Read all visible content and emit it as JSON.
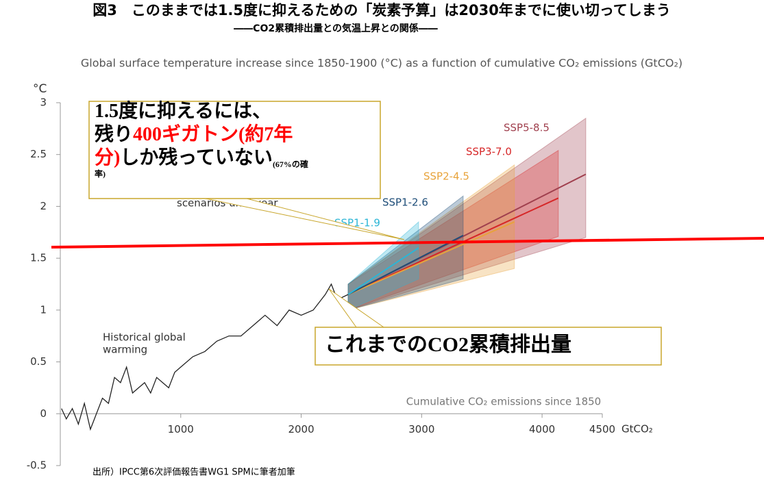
{
  "header": {
    "title": "図3　このままでは1.5度に抑えるための「炭素予算」は2030年までに使い切ってしまう",
    "subtitle": "――CO2累積排出量との気温上昇との関係――"
  },
  "chart_data": {
    "type": "line",
    "title": "Global surface temperature increase since 1850-1900 (°C) as a function of cumulative CO₂ emissions (GtCO₂)",
    "y_unit": "°C",
    "x_unit": "GtCO₂",
    "x_label": "Cumulative CO₂ emissions since 1850",
    "xlim": [
      0,
      4500
    ],
    "ylim": [
      -0.5,
      3
    ],
    "xticks": [
      1000,
      2000,
      3000,
      4000,
      4500
    ],
    "yticks": [
      -0.5,
      0,
      0.5,
      1,
      1.5,
      2,
      2.5,
      3
    ],
    "historical": {
      "name": [
        "Historical global",
        "warming"
      ],
      "color": "#222222",
      "x": [
        10,
        50,
        100,
        150,
        200,
        250,
        300,
        350,
        400,
        450,
        500,
        550,
        600,
        650,
        700,
        750,
        800,
        850,
        900,
        950,
        1000,
        1100,
        1200,
        1300,
        1400,
        1500,
        1600,
        1700,
        1800,
        1900,
        2000,
        2100,
        2200,
        2250,
        2300,
        2390
      ],
      "values": [
        0.05,
        -0.05,
        0.05,
        -0.1,
        0.1,
        -0.15,
        0.0,
        0.15,
        0.1,
        0.35,
        0.3,
        0.45,
        0.2,
        0.25,
        0.3,
        0.2,
        0.35,
        0.3,
        0.25,
        0.4,
        0.45,
        0.55,
        0.6,
        0.7,
        0.75,
        0.75,
        0.85,
        0.95,
        0.85,
        1.0,
        0.95,
        1.0,
        1.15,
        1.25,
        1.1,
        1.15
      ]
    },
    "scenario_note": "scenarios until year",
    "series": [
      {
        "name": "SSP5-8.5",
        "color": "#a0404e",
        "x": [
          2390,
          4363
        ],
        "values": [
          1.15,
          2.31
        ],
        "lower": [
          1.0,
          1.7
        ],
        "upper": [
          1.25,
          2.85
        ]
      },
      {
        "name": "SSP3-7.0",
        "color": "#d62728",
        "x": [
          2390,
          4135
        ],
        "values": [
          1.15,
          2.08
        ],
        "lower": [
          1.0,
          1.71
        ],
        "upper": [
          1.25,
          2.54
        ]
      },
      {
        "name": "SSP2-4.5",
        "color": "#e8a33a",
        "x": [
          2390,
          3770
        ],
        "values": [
          1.15,
          1.85
        ],
        "lower": [
          1.0,
          1.4
        ],
        "upper": [
          1.25,
          2.4
        ]
      },
      {
        "name": "SSP1-2.6",
        "color": "#1f4e79",
        "x": [
          2390,
          3345
        ],
        "values": [
          1.15,
          1.72
        ],
        "lower": [
          1.0,
          1.3
        ],
        "upper": [
          1.25,
          2.1
        ]
      },
      {
        "name": "SSP1-1.9",
        "color": "#2bb5d6",
        "x": [
          2390,
          2975
        ],
        "values": [
          1.15,
          1.6
        ],
        "lower": [
          1.0,
          1.3
        ],
        "upper": [
          1.25,
          1.85
        ]
      }
    ]
  },
  "callouts": [
    {
      "lines": [
        [
          {
            "text": "1.5度に抑えるには、",
            "color": "#000000"
          }
        ],
        [
          {
            "text": "残り",
            "color": "#000000"
          },
          {
            "text": "400ギガトン(約7年",
            "color": "#ff0000"
          }
        ],
        [
          {
            "text": "分)",
            "color": "#ff0000"
          },
          {
            "text": "しか残っていない",
            "color": "#000000"
          },
          {
            "text": "(67%の確",
            "color": "#000000"
          }
        ],
        [
          {
            "text": "率)",
            "color": "#000000"
          }
        ]
      ]
    },
    {
      "lines": [
        [
          {
            "text": "これまでのCO2累積排出量",
            "color": "#000000"
          }
        ]
      ]
    }
  ],
  "source": "出所）IPCC第6次評価報告書WG1 SPMに筆者加筆"
}
